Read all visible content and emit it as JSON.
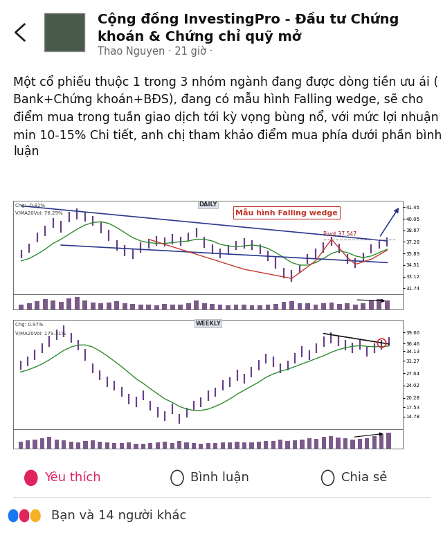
{
  "header": {
    "group": "Cộng đồng InvestingPro - Đầu tư Chứng khoán & Chứng chỉ quỹ mở",
    "author": "Thao Nguyen · 21 giờ ·"
  },
  "post": {
    "text": "Một cổ phiếu thuộc 1 trong 3 nhóm ngành đang được dòng tiền ưu ái ( Bank+Chứng khoán+BĐS), đang có mẫu hình Falling wedge, sẽ cho điểm mua trong tuần giao dịch tới kỳ vọng bùng nổ, với mức lợi nhuận min 10-15% Chi tiết, anh chị tham khảo điểm mua phía dưới phần bình luận"
  },
  "chart_data": [
    {
      "type": "price_bars",
      "title": "DAILY",
      "color": "#6a3d8a",
      "tick_labels": "y",
      "info": [
        "Chg: -0.82%",
        "V/MA20Vol: 76.29%"
      ],
      "annotation": "Mẫu hình Falling wedge",
      "pivot": {
        "label": "Pivot 37.547",
        "value": 37.547,
        "x": [
          38,
          47
        ]
      },
      "xlim": [
        -1,
        48
      ],
      "ylim": [
        31.0,
        42.2
      ],
      "yticks": [
        31.74,
        33.12,
        34.51,
        35.89,
        37.28,
        38.67,
        40.05,
        41.45
      ],
      "high": [
        36.3,
        37.1,
        38.4,
        39.2,
        40.1,
        39.8,
        40.9,
        41.3,
        40.9,
        40.4,
        39.6,
        38.7,
        37.5,
        36.9,
        36.4,
        37.2,
        37.6,
        38.0,
        37.8,
        38.2,
        37.9,
        38.4,
        39.0,
        37.9,
        37.0,
        36.5,
        36.9,
        37.4,
        37.7,
        37.5,
        37.0,
        36.2,
        35.5,
        34.2,
        33.9,
        34.6,
        35.8,
        36.5,
        37.2,
        37.9,
        37.1,
        35.8,
        35.3,
        36.0,
        37.0,
        37.6,
        37.8
      ],
      "low": [
        35.3,
        36.0,
        37.2,
        38.0,
        39.0,
        38.4,
        39.6,
        40.0,
        39.7,
        39.2,
        38.3,
        37.4,
        36.2,
        35.6,
        35.2,
        36.0,
        36.5,
        36.8,
        36.7,
        37.0,
        36.8,
        37.3,
        37.8,
        36.6,
        35.8,
        35.3,
        35.7,
        36.3,
        36.5,
        36.3,
        35.8,
        35.0,
        34.1,
        32.9,
        32.5,
        33.5,
        34.7,
        35.3,
        36.0,
        36.8,
        35.9,
        34.7,
        34.2,
        34.9,
        35.9,
        36.5,
        36.7
      ],
      "ma": [
        35.0,
        35.3,
        35.8,
        36.4,
        37.1,
        37.6,
        38.2,
        38.8,
        39.3,
        39.6,
        39.7,
        39.5,
        39.0,
        38.4,
        37.8,
        37.4,
        37.2,
        37.1,
        37.1,
        37.2,
        37.3,
        37.4,
        37.6,
        37.6,
        37.4,
        37.0,
        36.8,
        36.7,
        36.8,
        36.9,
        36.8,
        36.5,
        36.0,
        35.4,
        34.8,
        34.5,
        34.5,
        34.8,
        35.3,
        35.9,
        36.2,
        36.0,
        35.6,
        35.4,
        35.6,
        36.0,
        36.4
      ],
      "volume": [
        1.2,
        1.5,
        2.0,
        2.4,
        2.1,
        1.8,
        2.6,
        3.0,
        2.2,
        1.7,
        1.5,
        1.6,
        1.9,
        1.4,
        1.3,
        1.2,
        1.1,
        1.0,
        1.3,
        1.2,
        1.1,
        1.4,
        2.2,
        1.5,
        1.3,
        1.1,
        1.0,
        1.2,
        1.1,
        1.0,
        1.0,
        1.1,
        1.3,
        1.8,
        2.0,
        1.5,
        1.4,
        1.2,
        1.5,
        1.6,
        1.3,
        1.4,
        1.2,
        1.5,
        2.1,
        2.4,
        2.2
      ],
      "trend_lines": [
        {
          "x": [
            0,
            46
          ],
          "y": [
            41.6,
            37.4
          ],
          "color": "#2b3a8f"
        },
        {
          "x": [
            5,
            46
          ],
          "y": [
            36.9,
            34.8
          ],
          "color": "#2b3a8f"
        }
      ],
      "curves": [
        {
          "x": [
            16,
            22,
            28,
            34,
            37,
            39
          ],
          "y": [
            37.6,
            35.8,
            34.0,
            32.9,
            35.0,
            37.6
          ],
          "color": "#c0392b"
        },
        {
          "x": [
            39,
            41,
            42,
            44,
            46
          ],
          "y": [
            37.6,
            35.4,
            34.6,
            35.2,
            36.3
          ],
          "color": "#c0392b"
        }
      ],
      "arrows": [
        {
          "x": [
            45,
            47.6
          ],
          "y": [
            37.8,
            41.6
          ],
          "color": "#2b3a8f"
        }
      ],
      "volume_arrow": {
        "x": [
          42,
          46
        ],
        "y": [
          2.3,
          2.0
        ],
        "color": "#000000"
      }
    },
    {
      "type": "price_bars",
      "title": "WEEKLY",
      "color": "#6a3d8a",
      "tick_labels": "y",
      "info": [
        "Chg: 0.97%",
        "V/MA20Vol: 179.31%"
      ],
      "xlim": [
        -1,
        53
      ],
      "ylim": [
        11.0,
        43.5
      ],
      "yticks": [
        14.78,
        17.53,
        20.28,
        24.02,
        27.64,
        31.27,
        34.13,
        36.46,
        39.66
      ],
      "high": [
        31.4,
        32.5,
        34.6,
        36.5,
        38.7,
        40.6,
        41.8,
        39.5,
        37.6,
        34.8,
        30.5,
        28.4,
        26.6,
        25.3,
        23.5,
        21.4,
        20.6,
        22.5,
        19.4,
        17.6,
        16.4,
        18.6,
        15.5,
        17.4,
        19.5,
        20.4,
        22.6,
        23.4,
        25.6,
        26.5,
        28.6,
        27.4,
        29.5,
        31.6,
        33.4,
        32.6,
        30.5,
        31.4,
        33.6,
        35.6,
        34.4,
        36.5,
        38.6,
        39.7,
        38.5,
        37.4,
        36.6,
        37.5,
        35.4,
        36.4,
        37.5,
        38.3
      ],
      "low": [
        28.7,
        29.6,
        31.5,
        33.6,
        35.4,
        37.5,
        38.4,
        36.6,
        34.5,
        31.3,
        27.6,
        25.5,
        23.5,
        22.6,
        20.6,
        18.5,
        17.5,
        19.6,
        16.5,
        14.6,
        13.5,
        15.6,
        12.7,
        14.5,
        16.6,
        17.5,
        19.5,
        20.6,
        22.5,
        23.6,
        25.4,
        24.6,
        26.5,
        28.5,
        30.6,
        29.5,
        27.6,
        28.5,
        30.5,
        32.4,
        31.6,
        33.5,
        35.5,
        36.4,
        35.6,
        34.5,
        33.6,
        34.6,
        32.6,
        33.5,
        34.6,
        35.6
      ],
      "ma": [
        28,
        28.6,
        29.4,
        30.4,
        31.6,
        33,
        34.4,
        35.4,
        36,
        36,
        35.4,
        34.2,
        32.8,
        31.2,
        29.6,
        27.8,
        26,
        24.6,
        23,
        21.5,
        20,
        19,
        17.8,
        17,
        16.6,
        16.6,
        17,
        17.8,
        18.8,
        20,
        21.4,
        22.6,
        23.8,
        25,
        26.4,
        27.4,
        28.2,
        28.8,
        29.6,
        30.4,
        31.2,
        32,
        32.8,
        33.8,
        34.6,
        35.2,
        35.6,
        35.8,
        35.6,
        35.5,
        35.5,
        35.7
      ],
      "volume": [
        3,
        3.5,
        4,
        4.5,
        5,
        4,
        3.5,
        3,
        2.8,
        3.2,
        3.5,
        3,
        2.6,
        2.4,
        2.5,
        2.8,
        2.2,
        2,
        2.4,
        2.6,
        3,
        2.5,
        3.2,
        2.8,
        2.4,
        2.2,
        2.3,
        2.5,
        2.6,
        2.8,
        3,
        2.6,
        2.7,
        3,
        3.4,
        3.2,
        3.8,
        3.4,
        3.6,
        4,
        4.5,
        4.2,
        5,
        5.4,
        4.8,
        4.4,
        4,
        4.2,
        4.6,
        5.5,
        6.2,
        7
      ],
      "trend_lines": [
        {
          "x": [
            42,
            51
          ],
          "y": [
            39.4,
            36.3
          ],
          "color": "#111111"
        }
      ],
      "highlight": {
        "x": 50,
        "y": 36.6,
        "color": "#d62728"
      },
      "volume_arrow": {
        "x": [
          46,
          50.5
        ],
        "y": [
          5.0,
          6.6
        ],
        "color": "#000000"
      }
    }
  ],
  "actions": [
    {
      "label": "Yêu thích",
      "color": "#e0245e"
    },
    {
      "label": "Bình luận",
      "color": "#333333"
    },
    {
      "label": "Chia sẻ",
      "color": "#333333"
    }
  ],
  "reactions": "Bạn và 14 người khác"
}
